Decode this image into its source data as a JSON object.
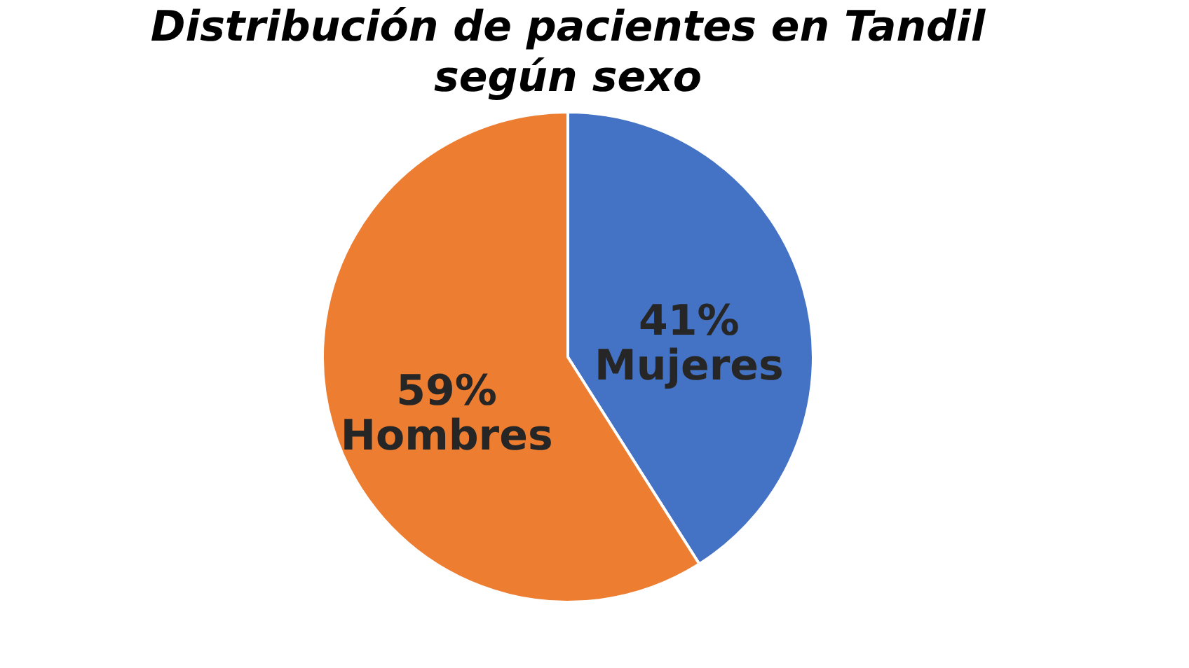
{
  "chart_data": {
    "type": "pie",
    "title": "Distribución de pacientes en Tandil según sexo",
    "categories": [
      "Mujeres",
      "Hombres"
    ],
    "values": [
      41,
      59
    ],
    "colors": [
      "#4472c4",
      "#ed7d31"
    ],
    "value_labels": [
      "41%",
      "59%"
    ],
    "legend": false
  }
}
